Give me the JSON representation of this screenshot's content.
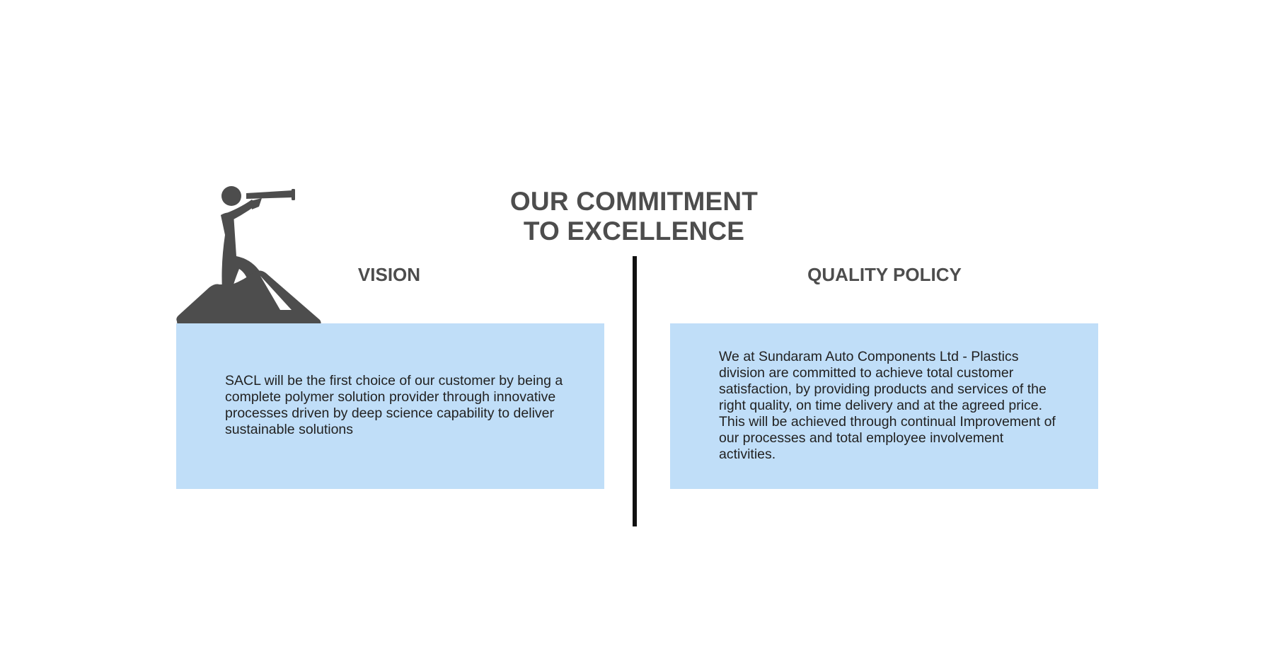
{
  "title": {
    "line1": "OUR COMMITMENT",
    "line2": "TO EXCELLENCE"
  },
  "vision": {
    "heading": "VISION",
    "text": "SACL will be the first choice of our customer by being a complete polymer solution provider through innovative processes driven by deep science capability to deliver sustainable solutions"
  },
  "quality_policy": {
    "heading": "QUALITY POLICY",
    "text": "We at Sundaram Auto Components Ltd - Plastics division are committed to achieve total customer satisfaction, by providing products and services of the right quality, on time delivery and at the agreed price. This will be achieved through continual Improvement of our processes and total employee involvement activities."
  },
  "icons": {
    "vision_figure": "person-with-telescope-on-mountain-icon"
  },
  "colors": {
    "heading": "#4d4d4d",
    "card_background": "#c0def8",
    "divider": "#111111",
    "body_text": "#222222"
  }
}
